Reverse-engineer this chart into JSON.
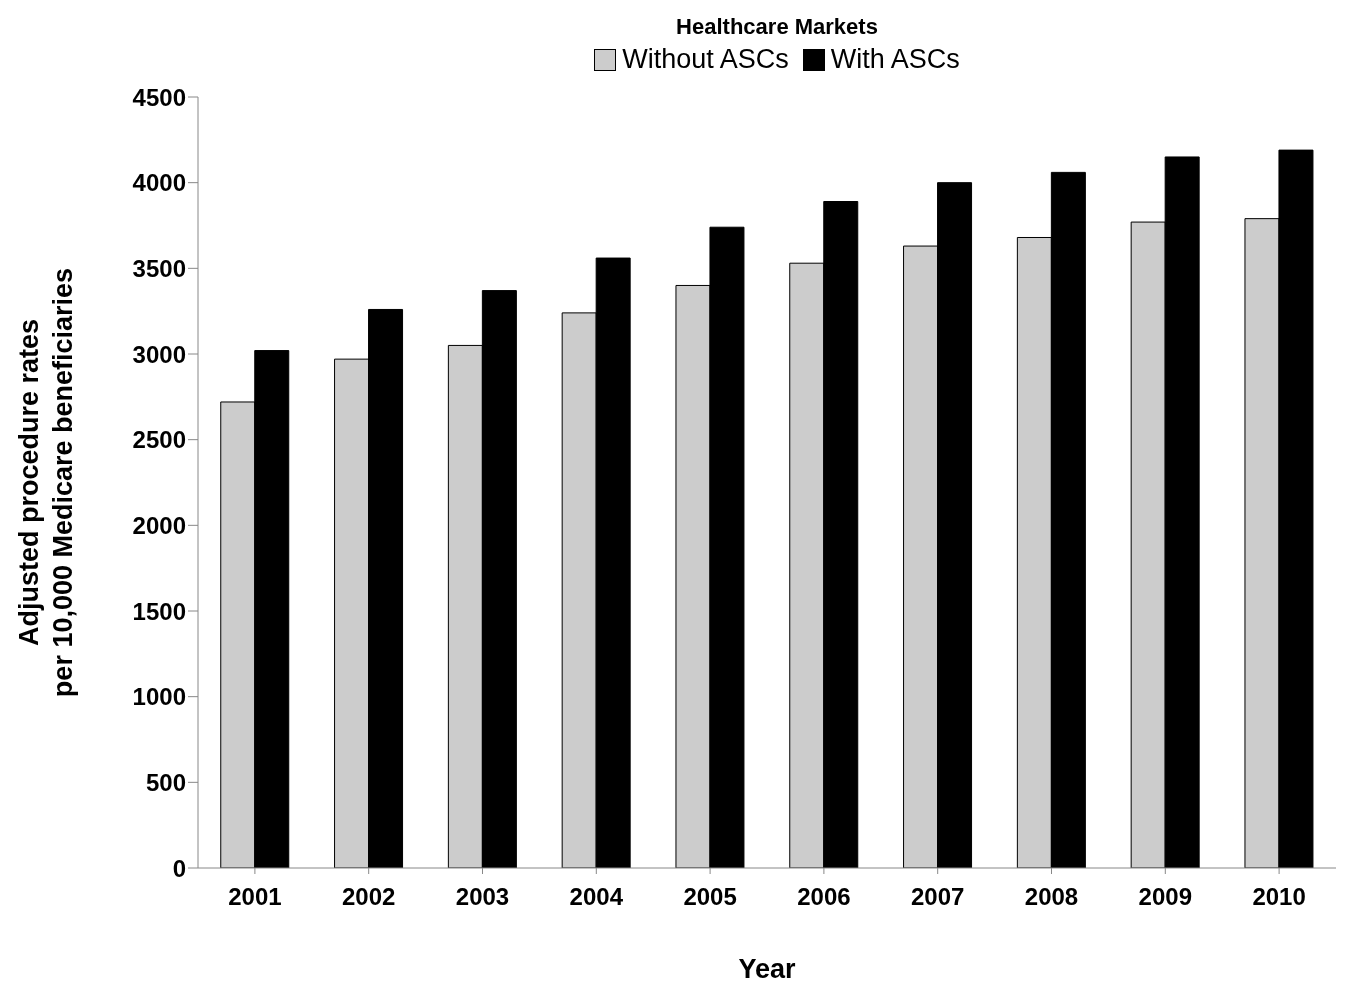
{
  "chart_data": {
    "type": "bar",
    "legend_title": "Healthcare Markets",
    "xlabel": "Year",
    "ylabel": "Adjusted procedure rates\nper 10,000 Medicare beneficiaries",
    "categories": [
      "2001",
      "2002",
      "2003",
      "2004",
      "2005",
      "2006",
      "2007",
      "2008",
      "2009",
      "2010"
    ],
    "series": [
      {
        "name": "Without ASCs",
        "color": "#cccccc",
        "values": [
          2720,
          2970,
          3050,
          3240,
          3400,
          3530,
          3630,
          3680,
          3770,
          3790
        ]
      },
      {
        "name": "With ASCs",
        "color": "#000000",
        "values": [
          3020,
          3260,
          3370,
          3560,
          3740,
          3890,
          4000,
          4060,
          4150,
          4190
        ]
      }
    ],
    "ylim": [
      0,
      4500
    ],
    "yticks": [
      0,
      500,
      1000,
      1500,
      2000,
      2500,
      3000,
      3500,
      4000,
      4500
    ],
    "grid": false,
    "legend": "top"
  }
}
